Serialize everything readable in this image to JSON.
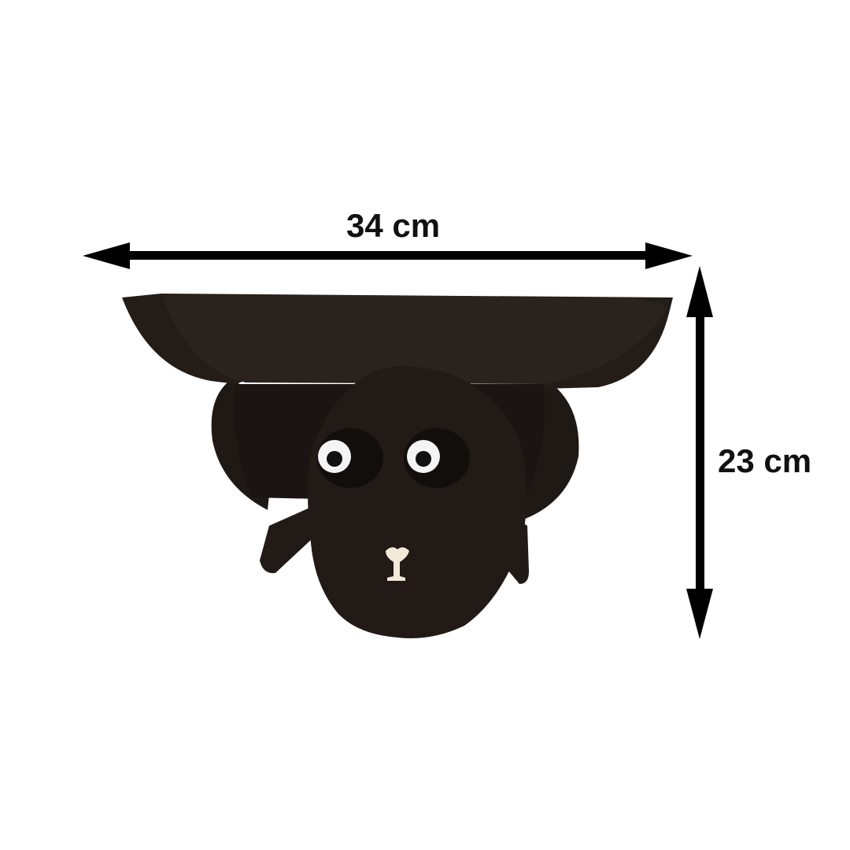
{
  "dimensions": {
    "width": {
      "value": 34,
      "unit": "cm",
      "label": "34 cm"
    },
    "height": {
      "value": 23,
      "unit": "cm",
      "label": "23 cm"
    }
  },
  "colors": {
    "background": "#ffffff",
    "product": "#1f1915",
    "arrow": "#000000",
    "label": "#111111"
  },
  "product": {
    "description_icon": "sheep-shelf"
  }
}
